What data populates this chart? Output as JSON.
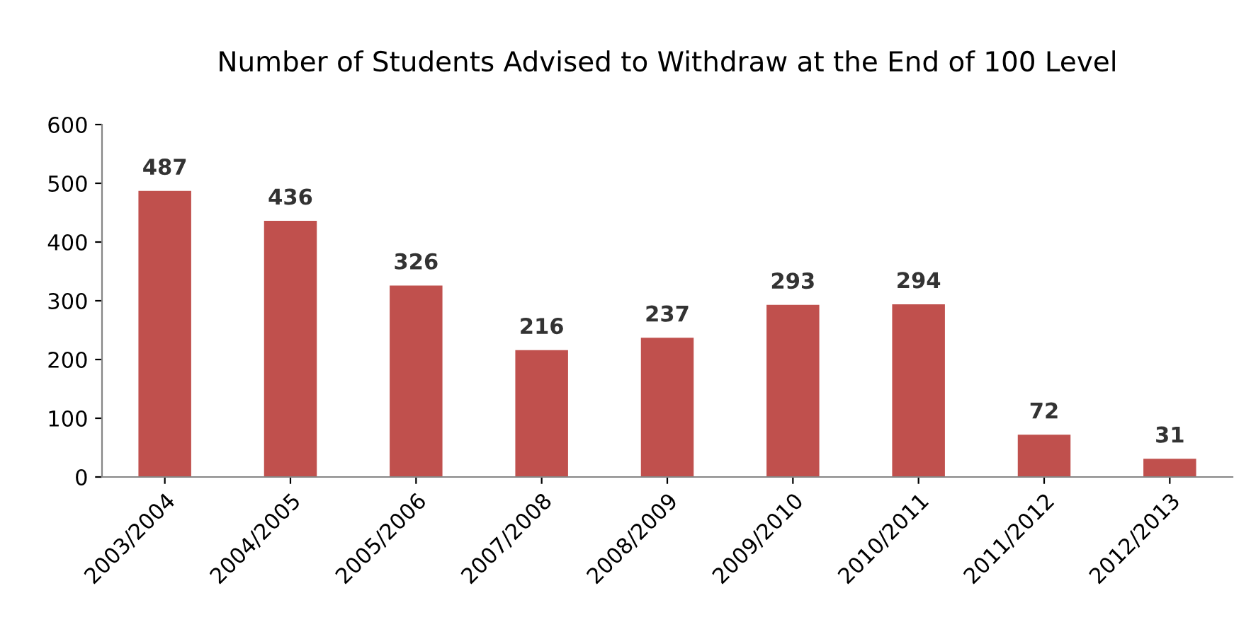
{
  "chart_data": {
    "type": "bar",
    "title": "Number of Students Advised to Withdraw at the End of 100 Level",
    "categories": [
      "2003/2004",
      "2004/2005",
      "2005/2006",
      "2007/2008",
      "2008/2009",
      "2009/2010",
      "2010/2011",
      "2011/2012",
      "2012/2013"
    ],
    "values": [
      487,
      436,
      326,
      216,
      237,
      293,
      294,
      72,
      31
    ],
    "color": "#c0504d",
    "ylim": [
      0,
      600
    ],
    "yticks": [
      0,
      100,
      200,
      300,
      400,
      500,
      600
    ],
    "grid": false,
    "data_labels": true,
    "legend": false
  }
}
